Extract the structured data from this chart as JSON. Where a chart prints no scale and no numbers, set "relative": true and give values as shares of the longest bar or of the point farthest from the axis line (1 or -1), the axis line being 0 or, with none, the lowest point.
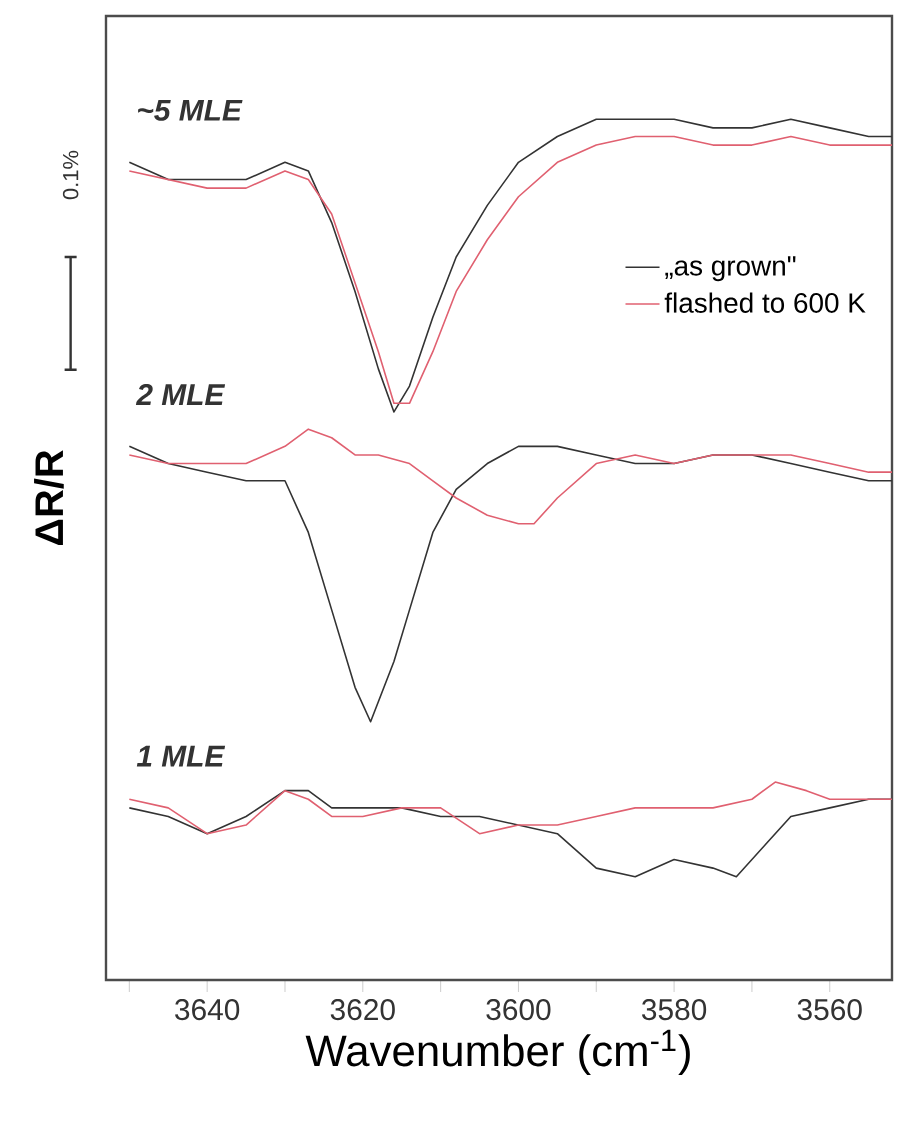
{
  "chart_data": {
    "type": "line",
    "relative": true,
    "xlabel": "Wavenumber (cm$^{-1}$)",
    "ylabel": "ΔR/R",
    "xlim": [
      3653,
      3552
    ],
    "xticks": [
      {
        "value": 3650,
        "label": null
      },
      3640,
      {
        "value": 3630,
        "label": null
      },
      3620,
      {
        "value": 3610,
        "label": null
      },
      3600,
      {
        "value": 3590,
        "label": null
      },
      3580,
      {
        "value": 3570,
        "label": null
      },
      3560
    ],
    "legend": "right",
    "grid": false,
    "marker": "none",
    "annotations": [
      "~5 MLE",
      "2 MLE",
      "1 MLE",
      "0.1%"
    ],
    "series": [
      {
        "name": "„as grown\"",
        "color": "#333333",
        "x": [
          3650,
          3645,
          3640,
          3635,
          3630,
          3627,
          3624,
          3621,
          3618,
          3616,
          3614,
          3611,
          3608,
          3604,
          3600,
          3595,
          3590,
          3585,
          3580,
          3575,
          3570,
          3565,
          3560,
          3555,
          3552
        ],
        "values": [
          0.95,
          0.93,
          0.93,
          0.93,
          0.95,
          0.94,
          0.88,
          0.8,
          0.71,
          0.66,
          0.69,
          0.77,
          0.84,
          0.9,
          0.95,
          0.98,
          1.0,
          1.0,
          1.0,
          0.99,
          0.99,
          1.0,
          0.99,
          0.98,
          0.98
        ]
      },
      {
        "name": "flashed to 600 K",
        "color": "#e06070",
        "x": [
          3650,
          3645,
          3640,
          3635,
          3630,
          3627,
          3624,
          3621,
          3618,
          3616,
          3614,
          3611,
          3608,
          3604,
          3600,
          3595,
          3590,
          3585,
          3580,
          3575,
          3570,
          3565,
          3560,
          3555,
          3552
        ],
        "values": [
          0.94,
          0.93,
          0.92,
          0.92,
          0.94,
          0.93,
          0.89,
          0.81,
          0.73,
          0.67,
          0.67,
          0.73,
          0.8,
          0.86,
          0.91,
          0.95,
          0.97,
          0.98,
          0.98,
          0.97,
          0.97,
          0.98,
          0.97,
          0.97,
          0.97
        ]
      },
      {
        "color": "#333333",
        "x": [
          3650,
          3645,
          3640,
          3635,
          3630,
          3627,
          3624,
          3621,
          3619,
          3616,
          3614,
          3611,
          3608,
          3604,
          3600,
          3595,
          3590,
          3585,
          3580,
          3575,
          3570,
          3565,
          3560,
          3555,
          3552
        ],
        "values": [
          0.62,
          0.6,
          0.59,
          0.58,
          0.58,
          0.52,
          0.43,
          0.34,
          0.3,
          0.37,
          0.43,
          0.52,
          0.57,
          0.6,
          0.62,
          0.62,
          0.61,
          0.6,
          0.6,
          0.61,
          0.61,
          0.6,
          0.59,
          0.58,
          0.58
        ]
      },
      {
        "color": "#e06070",
        "x": [
          3650,
          3645,
          3640,
          3635,
          3630,
          3627,
          3624,
          3621,
          3618,
          3614,
          3611,
          3608,
          3604,
          3600,
          3598,
          3595,
          3590,
          3585,
          3580,
          3575,
          3570,
          3565,
          3560,
          3555,
          3552
        ],
        "values": [
          0.61,
          0.6,
          0.6,
          0.6,
          0.62,
          0.64,
          0.63,
          0.61,
          0.61,
          0.6,
          0.58,
          0.56,
          0.54,
          0.53,
          0.53,
          0.56,
          0.6,
          0.61,
          0.6,
          0.61,
          0.61,
          0.61,
          0.6,
          0.59,
          0.59
        ]
      },
      {
        "color": "#333333",
        "x": [
          3650,
          3645,
          3640,
          3635,
          3630,
          3627,
          3624,
          3620,
          3615,
          3610,
          3605,
          3600,
          3595,
          3590,
          3585,
          3580,
          3575,
          3572,
          3568,
          3565,
          3560,
          3555,
          3552
        ],
        "values": [
          0.2,
          0.19,
          0.17,
          0.19,
          0.22,
          0.22,
          0.2,
          0.2,
          0.2,
          0.19,
          0.19,
          0.18,
          0.17,
          0.13,
          0.12,
          0.14,
          0.13,
          0.12,
          0.16,
          0.19,
          0.2,
          0.21,
          0.21
        ]
      },
      {
        "color": "#e06070",
        "x": [
          3650,
          3645,
          3640,
          3635,
          3630,
          3627,
          3624,
          3620,
          3615,
          3610,
          3605,
          3600,
          3595,
          3590,
          3585,
          3580,
          3575,
          3570,
          3567,
          3563,
          3560,
          3555,
          3552
        ],
        "values": [
          0.21,
          0.2,
          0.17,
          0.18,
          0.22,
          0.21,
          0.19,
          0.19,
          0.2,
          0.2,
          0.17,
          0.18,
          0.18,
          0.19,
          0.2,
          0.2,
          0.2,
          0.21,
          0.23,
          0.22,
          0.21,
          0.21,
          0.21
        ]
      }
    ]
  }
}
